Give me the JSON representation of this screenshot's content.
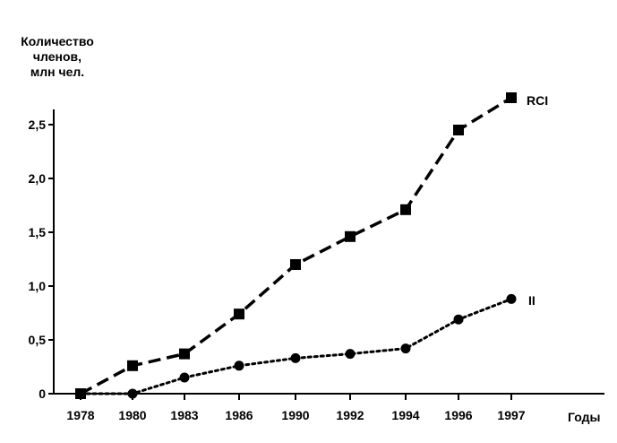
{
  "chart_data": {
    "type": "line",
    "title": "",
    "ylabel_lines": [
      "Количество",
      "членов,",
      "млн чел."
    ],
    "xlabel": "Годы",
    "ylim": [
      0,
      2.75
    ],
    "y_ticks": [
      "0",
      "0,5",
      "1,0",
      "1,5",
      "2,0",
      "2,5"
    ],
    "y_tick_values": [
      0,
      0.5,
      1.0,
      1.5,
      2.0,
      2.5
    ],
    "categories": [
      "1978",
      "1980",
      "1983",
      "1986",
      "1990",
      "1992",
      "1994",
      "1996",
      "1997"
    ],
    "grid": false,
    "series": [
      {
        "name": "RCI",
        "marker": "square",
        "line_style": "dashed",
        "x": [
          "1978",
          "1980",
          "1983",
          "1986",
          "1990",
          "1992",
          "1994",
          "1996",
          "1997"
        ],
        "values": [
          0,
          0.26,
          0.37,
          0.74,
          1.2,
          1.46,
          1.71,
          2.45,
          2.75
        ]
      },
      {
        "name": "II",
        "marker": "circle",
        "line_style": "dotted",
        "x": [
          "1978",
          "1980",
          "1983",
          "1986",
          "1990",
          "1992",
          "1994",
          "1996",
          "1997"
        ],
        "values": [
          0,
          0,
          0.15,
          0.26,
          0.33,
          0.37,
          0.42,
          0.69,
          0.88
        ]
      }
    ]
  }
}
